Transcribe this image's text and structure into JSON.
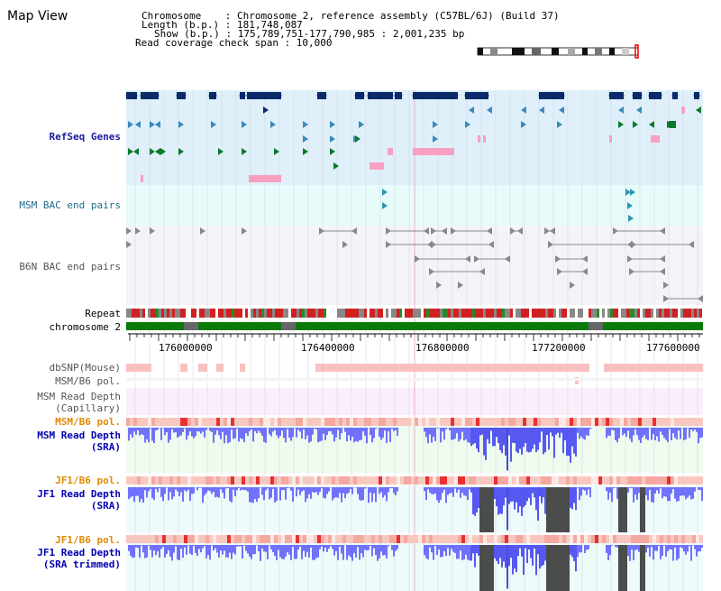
{
  "view": {
    "title": "Map View"
  },
  "info": {
    "chromosome": "Chromosome    : Chromosome 2, reference assembly (C57BL/6J) (Build 37)",
    "length": "Length (b.p.) : 181,748,087",
    "show": "Show (b.p.) : 175,789,751-177,790,985 : 2,001,235 bp",
    "read_coverage": "Read coverage check span : 10,000"
  },
  "tracks": {
    "refseq": "RefSeq Genes",
    "msm_bac": "MSM BAC end pairs",
    "b6n_bac": "B6N BAC end pairs",
    "repeat": "Repeat",
    "chromosome": "chromosome 2",
    "dbsnp": "dbSNP(Mouse)",
    "msm_b6_pol_1": "MSM/B6 pol.",
    "msm_depth_cap_1": "MSM Read Depth",
    "msm_depth_cap_2": "(Capillary)",
    "msm_b6_pol_2": "MSM/B6 pol.",
    "msm_depth_sra_1": "MSM Read Depth",
    "msm_depth_sra_2": "(SRA)",
    "jf1_b6_pol_1": "JF1/B6 pol.",
    "jf1_depth_sra_1": "JF1 Read Depth",
    "jf1_depth_sra_2": "(SRA)",
    "jf1_b6_pol_2": "JF1/B6 pol.",
    "jf1_depth_trim_1": "JF1 Read Depth",
    "jf1_depth_trim_2": "(SRA trimmed)"
  },
  "axis": {
    "ticks": [
      "176000000",
      "176400000",
      "176800000",
      "177200000",
      "177600000"
    ]
  },
  "colors": {
    "refseq_bg": "#dff0fb",
    "bac_bg": "#e8fbfb",
    "b6n_bg": "#f4f4f8",
    "gene_navy": "#0a2a6a",
    "gene_blue": "#3a8ab8",
    "gene_green": "#0a7a2a",
    "pink": "#f7a0c0",
    "chrom_green": "#0a7a0a",
    "depth_blue": "#5050ff"
  }
}
